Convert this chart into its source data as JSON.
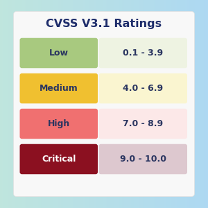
{
  "title": "CVSS V3.1 Ratings",
  "title_color": "#1e2d6b",
  "title_fontsize": 11.5,
  "rows": [
    {
      "label": "Low",
      "range": "0.1 - 3.9",
      "label_bg": "#a8c97f",
      "range_bg": "#eef3e2",
      "label_text_color": "#2a3560",
      "range_text_color": "#2a3560"
    },
    {
      "label": "Medium",
      "range": "4.0 - 6.9",
      "label_bg": "#f0c030",
      "range_bg": "#faf5d0",
      "label_text_color": "#2a3560",
      "range_text_color": "#2a3560"
    },
    {
      "label": "High",
      "range": "7.0 - 8.9",
      "label_bg": "#f07070",
      "range_bg": "#fce8e8",
      "label_text_color": "#2a3560",
      "range_text_color": "#2a3560"
    },
    {
      "label": "Critical",
      "range": "9.0 - 10.0",
      "label_bg": "#8b1020",
      "range_bg": "#ddc8cf",
      "label_text_color": "#ffffff",
      "range_text_color": "#2a3560"
    }
  ],
  "bg_tl": [
    0.75,
    0.9,
    0.87
  ],
  "bg_tr": [
    0.68,
    0.85,
    0.95
  ],
  "bg_bl": [
    0.75,
    0.9,
    0.87
  ],
  "bg_br": [
    0.68,
    0.85,
    0.95
  ],
  "card_bg": "#f8f8f8",
  "fig_width": 3.0,
  "fig_height": 3.0,
  "dpi": 100
}
